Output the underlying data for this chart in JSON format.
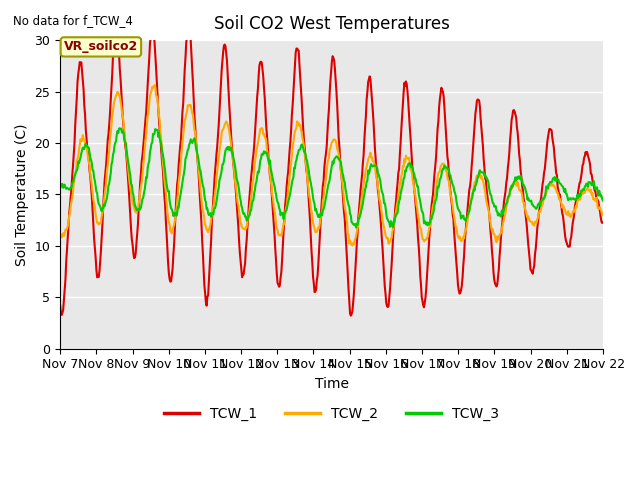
{
  "title": "Soil CO2 West Temperatures",
  "xlabel": "Time",
  "ylabel": "Soil Temperature (C)",
  "ylim": [
    0,
    30
  ],
  "no_data_text": "No data for f_TCW_4",
  "annotation_text": "VR_soilco2",
  "bg_color": "#e8e8e8",
  "line_colors": {
    "TCW_1": "#dd0000",
    "TCW_2": "#ffaa00",
    "TCW_3": "#00cc00"
  },
  "line_width": 1.5,
  "legend_labels": [
    "TCW_1",
    "TCW_2",
    "TCW_3"
  ],
  "xtick_labels": [
    "Nov 7",
    "Nov 8",
    "Nov 9",
    "Nov 10",
    "Nov 11",
    "Nov 12",
    "Nov 13",
    "Nov 14",
    "Nov 15",
    "Nov 16",
    "Nov 17",
    "Nov 18",
    "Nov 19",
    "Nov 20",
    "Nov 21",
    "Nov 22"
  ],
  "num_days": 15,
  "points_per_day": 48,
  "yticks": [
    0,
    5,
    10,
    15,
    20,
    25,
    30
  ],
  "figsize": [
    6.4,
    4.8
  ],
  "dpi": 100
}
